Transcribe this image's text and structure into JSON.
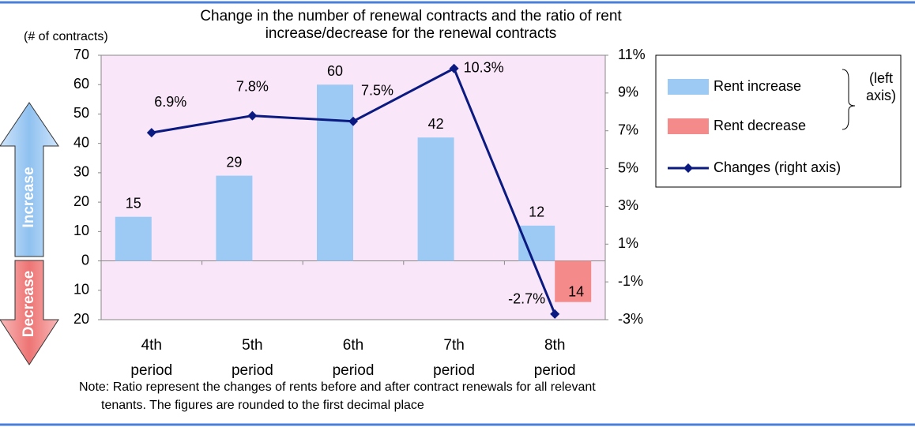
{
  "chart_data": {
    "type": "bar-line",
    "title": "Change in the number of renewal contracts and the ratio of rent increase/decrease for the renewal contracts",
    "ylabel": "(# of contracts)",
    "legend_group_label": "(left axis)",
    "categories": [
      "4th period",
      "5th period",
      "6th period",
      "7th period",
      "8th period"
    ],
    "series": [
      {
        "name": "Rent increase",
        "type": "bar",
        "color": "#9ccaf4",
        "values": [
          15,
          29,
          60,
          42,
          12
        ]
      },
      {
        "name": "Rent decrease",
        "type": "bar",
        "color": "#f58a8a",
        "values": [
          null,
          null,
          null,
          null,
          -14
        ],
        "value_labels": [
          null,
          null,
          null,
          null,
          "14"
        ]
      },
      {
        "name": "Changes (right axis)",
        "type": "line",
        "axis": "y2",
        "color": "#0a1a80",
        "values": [
          6.9,
          7.8,
          7.5,
          10.3,
          -2.7
        ],
        "value_labels": [
          "6.9%",
          "7.8%",
          "7.5%",
          "10.3%",
          "-2.7%"
        ]
      }
    ],
    "ylim": [
      -20,
      70
    ],
    "yticks": [
      {
        "value": -20,
        "label": "20"
      },
      {
        "value": -10,
        "label": "10"
      },
      0,
      10,
      20,
      30,
      40,
      50,
      60,
      70
    ],
    "y2lim": [
      -3,
      11
    ],
    "y2ticks": [
      {
        "value": -3,
        "label": "-3%"
      },
      {
        "value": -1,
        "label": "-1%"
      },
      {
        "value": 1,
        "label": "1%"
      },
      {
        "value": 3,
        "label": "3%"
      },
      {
        "value": 5,
        "label": "5%"
      },
      {
        "value": 7,
        "label": "7%"
      },
      {
        "value": 9,
        "label": "9%"
      },
      {
        "value": 11,
        "label": "11%"
      }
    ],
    "grid": false,
    "legend": "right"
  },
  "arrows": [
    "Increase",
    "Decrease"
  ],
  "notes": [
    "Note: Ratio represent the changes of rents before and after contract renewals for all relevant",
    "tenants. The figures are rounded to the first decimal place"
  ]
}
